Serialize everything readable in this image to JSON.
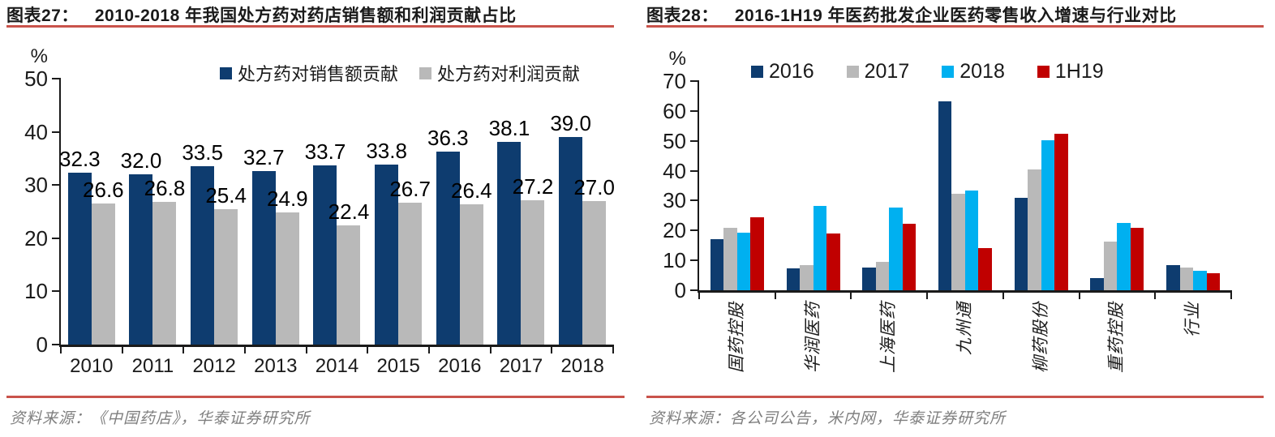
{
  "colors": {
    "navy": "#0E3C6F",
    "gray": "#B9B9B9",
    "cyan": "#00B0F0",
    "red": "#C00000",
    "rule": "#C9534B",
    "axis": "#1A1A1A",
    "source_text": "#7F7F7F"
  },
  "chart_data": [
    {
      "type": "bar",
      "figure_label": "图表27：",
      "title": "2010-2018 年我国处方药对药店销售额和利润贡献占比",
      "unit_label": "%",
      "categories": [
        "2010",
        "2011",
        "2012",
        "2013",
        "2014",
        "2015",
        "2016",
        "2017",
        "2018"
      ],
      "series": [
        {
          "name": "处方药对销售额贡献",
          "color_key": "navy",
          "values": [
            32.3,
            32.0,
            33.5,
            32.7,
            33.7,
            33.8,
            36.3,
            38.1,
            39.0
          ]
        },
        {
          "name": "处方药对利润贡献",
          "color_key": "gray",
          "values": [
            26.6,
            26.8,
            25.4,
            24.9,
            22.4,
            26.7,
            26.4,
            27.2,
            27.0
          ]
        }
      ],
      "ylim": [
        0,
        50
      ],
      "ytick_step": 10,
      "data_labels": true,
      "grid": false,
      "legend_position": "top",
      "source": "资料来源：《中国药店》，华泰证券研究所"
    },
    {
      "type": "bar",
      "figure_label": "图表28：",
      "title": "2016-1H19 年医药批发企业医药零售收入增速与行业对比",
      "unit_label": "%",
      "categories": [
        "国药控股",
        "华润医药",
        "上海医药",
        "九州通",
        "柳药股份",
        "重药控股",
        "行业"
      ],
      "series": [
        {
          "name": "2016",
          "color_key": "navy",
          "values": [
            17.0,
            7.2,
            7.5,
            63.2,
            31.0,
            4.0,
            8.3
          ]
        },
        {
          "name": "2017",
          "color_key": "gray",
          "values": [
            21.0,
            8.5,
            9.5,
            32.3,
            40.5,
            16.2,
            7.6
          ]
        },
        {
          "name": "2018",
          "color_key": "cyan",
          "values": [
            19.4,
            28.2,
            27.6,
            33.5,
            50.2,
            22.6,
            6.4
          ]
        },
        {
          "name": "1H19",
          "color_key": "red",
          "values": [
            24.3,
            19.0,
            22.3,
            14.0,
            52.4,
            21.0,
            5.8
          ]
        }
      ],
      "ylim": [
        0,
        70
      ],
      "ytick_step": 10,
      "data_labels": false,
      "x_label_rotation": -90,
      "grid": false,
      "legend_position": "top",
      "source": "资料来源：各公司公告，米内网，华泰证券研究所"
    }
  ]
}
